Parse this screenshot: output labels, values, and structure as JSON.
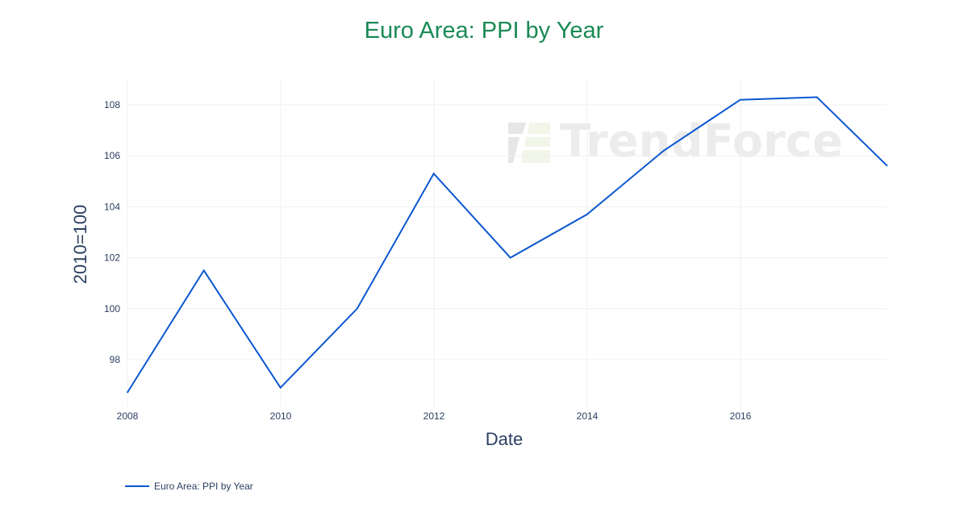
{
  "title": "Euro Area: PPI by Year",
  "watermark": {
    "text": "TrendForce"
  },
  "colors": {
    "title": "#1a8a55",
    "line": "#0b57d0",
    "axis_text": "#2a3f5f",
    "grid": "#f0f0f0"
  },
  "legend": {
    "label": "Euro Area: PPI by Year"
  },
  "chart_data": {
    "type": "line",
    "title": "Euro Area: PPI by Year",
    "xlabel": "Date",
    "ylabel": "2010=100",
    "x": [
      "2007-12-31",
      "2008-12-31",
      "2009-12-31",
      "2010-12-31",
      "2011-12-31",
      "2012-12-31",
      "2013-12-31",
      "2014-12-31",
      "2015-12-31",
      "2016-12-31",
      "2017-12-31"
    ],
    "series": [
      {
        "name": "Euro Area: PPI by Year",
        "values": [
          96.7,
          101.5,
          96.9,
          100.0,
          105.3,
          102.0,
          103.7,
          106.2,
          108.2,
          108.3,
          105.6
        ]
      }
    ],
    "x_ticks": [
      "2008",
      "2010",
      "2012",
      "2014",
      "2016"
    ],
    "y_ticks": [
      "98",
      "100",
      "102",
      "104",
      "106",
      "108"
    ],
    "ylim": [
      96.2,
      109.0
    ],
    "grid": true,
    "legend_position": "bottom-left"
  }
}
